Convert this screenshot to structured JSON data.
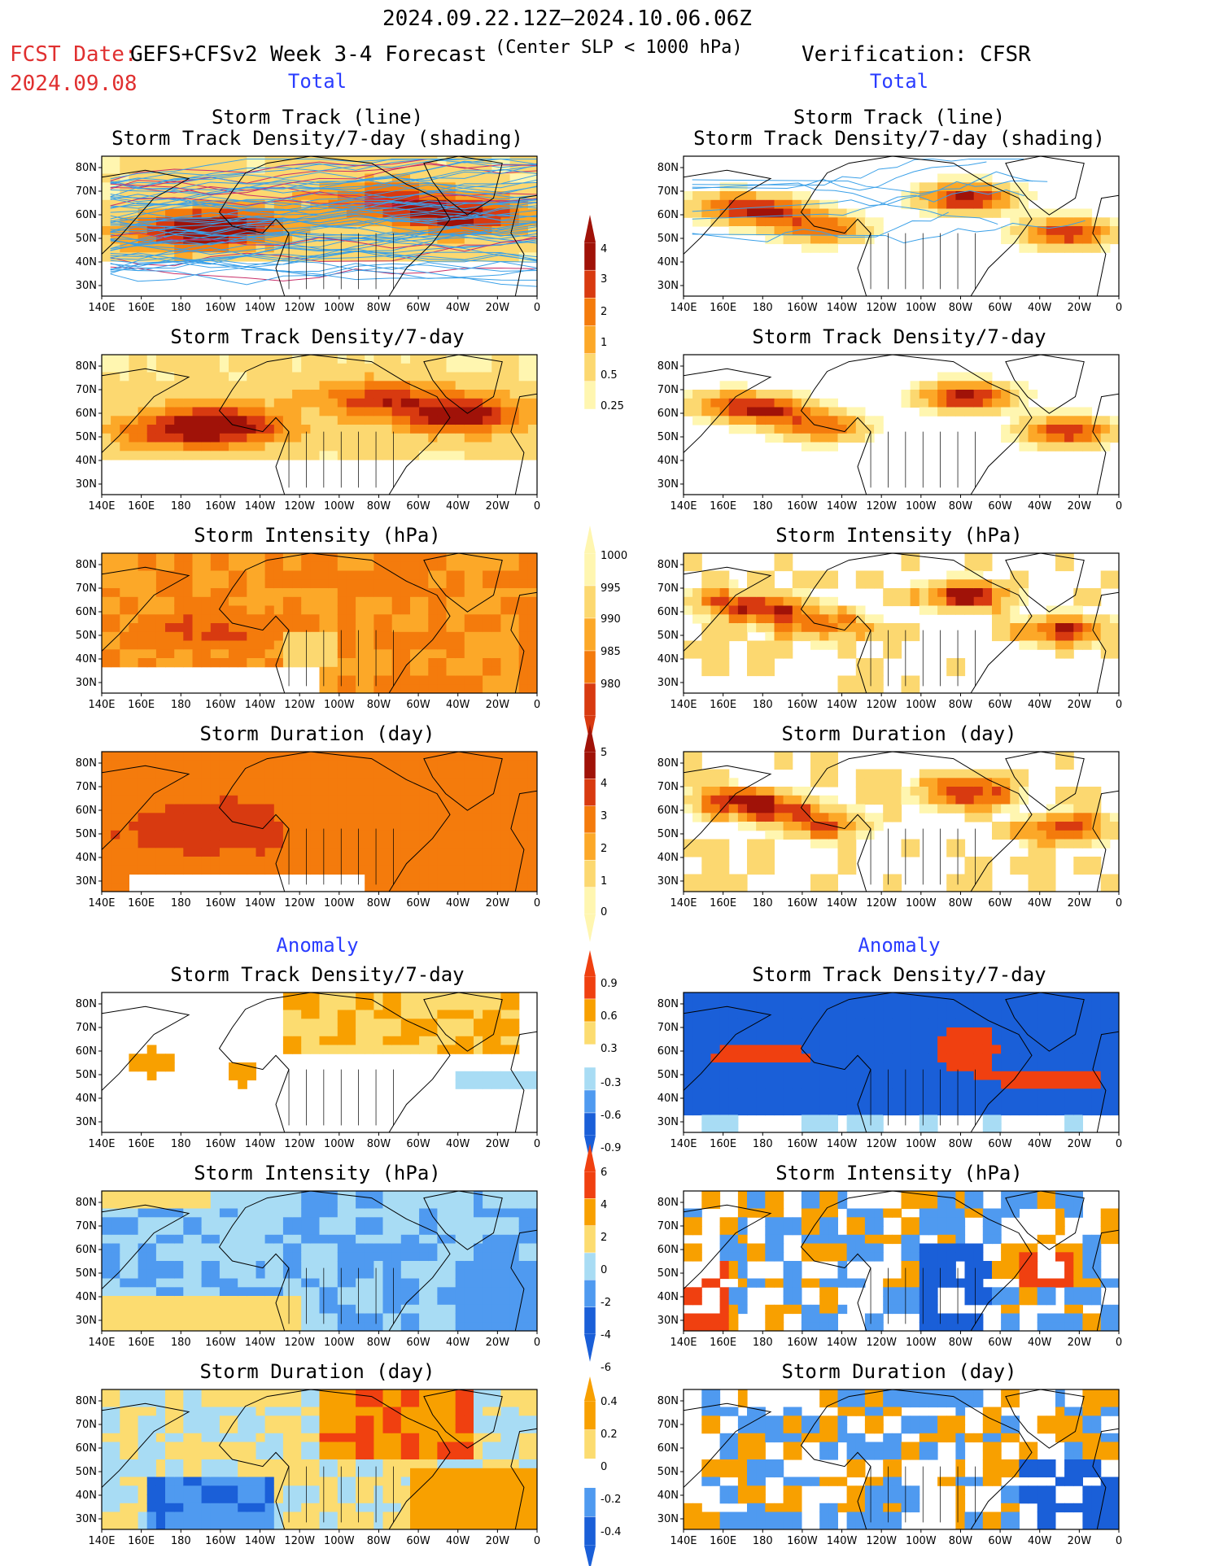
{
  "header": {
    "date_range": "2024.09.22.12Z–2024.10.06.06Z",
    "fcst_date_label": "FCST Date:",
    "fcst_date": "2024.09.08",
    "model_label": "GEFS+CFSv2 Week 3-4 Forecast",
    "criterion": "(Center SLP < 1000 hPa)",
    "verification": "Verification: CFSR"
  },
  "sections": {
    "total": "Total",
    "anomaly": "Anomaly"
  },
  "axis": {
    "lon_ticks": [
      "140E",
      "160E",
      "180",
      "160W",
      "140W",
      "120W",
      "100W",
      "80W",
      "60W",
      "40W",
      "20W",
      "0"
    ],
    "lat_ticks": [
      "80N",
      "70N",
      "60N",
      "50N",
      "40N",
      "30N"
    ]
  },
  "panels": {
    "track_line_1": "Storm Track (line)",
    "track_line_2": "Storm Track Density/7-day (shading)",
    "density": "Storm Track Density/7-day",
    "intensity": "Storm Intensity (hPa)",
    "duration": "Storm Duration (day)"
  },
  "colorbars": {
    "density": [
      "0.25",
      "0.5",
      "1",
      "2",
      "3",
      "4"
    ],
    "intensity": [
      "1000",
      "995",
      "990",
      "985",
      "980"
    ],
    "duration": [
      "0",
      "1",
      "2",
      "3",
      "4",
      "5"
    ],
    "density_anom": [
      "-0.9",
      "-0.6",
      "-0.3",
      "0.3",
      "0.6",
      "0.9"
    ],
    "intensity_anom": [
      "-6",
      "-4",
      "-2",
      "0",
      "2",
      "4",
      "6"
    ],
    "duration_anom": [
      "-0.4",
      "-0.2",
      "0",
      "0.2",
      "0.4"
    ]
  },
  "colors": {
    "seq": [
      "#fff6b0",
      "#fcd870",
      "#fca828",
      "#f47b0c",
      "#d83a10",
      "#a01208"
    ],
    "div_neg": [
      "#1a5fd8",
      "#4f9af0",
      "#a8dcf4"
    ],
    "div_pos": [
      "#fcdc70",
      "#f8a000",
      "#f04010"
    ]
  },
  "chart_data": [
    {
      "type": "heatmap",
      "title": "Storm Track (line) / Storm Track Density/7-day (shading)",
      "source": "GEFS+CFSv2",
      "xlabel": "",
      "ylabel": ""
    },
    {
      "type": "heatmap",
      "title": "Storm Track (line) / Storm Track Density/7-day (shading)",
      "source": "CFSR",
      "xlabel": "",
      "ylabel": ""
    },
    {
      "type": "heatmap",
      "title": "Storm Track Density/7-day",
      "source": "GEFS+CFSv2",
      "scale": [
        0.25,
        0.5,
        1,
        2,
        3,
        4
      ]
    },
    {
      "type": "heatmap",
      "title": "Storm Track Density/7-day",
      "source": "CFSR",
      "scale": [
        0.25,
        0.5,
        1,
        2,
        3,
        4
      ]
    },
    {
      "type": "heatmap",
      "title": "Storm Intensity (hPa)",
      "source": "GEFS+CFSv2",
      "scale": [
        1000,
        995,
        990,
        985,
        980
      ]
    },
    {
      "type": "heatmap",
      "title": "Storm Intensity (hPa)",
      "source": "CFSR",
      "scale": [
        1000,
        995,
        990,
        985,
        980
      ]
    },
    {
      "type": "heatmap",
      "title": "Storm Duration (day)",
      "source": "GEFS+CFSv2",
      "scale": [
        0,
        1,
        2,
        3,
        4,
        5
      ]
    },
    {
      "type": "heatmap",
      "title": "Storm Duration (day)",
      "source": "CFSR",
      "scale": [
        0,
        1,
        2,
        3,
        4,
        5
      ]
    },
    {
      "type": "heatmap",
      "title": "Storm Track Density/7-day (Anomaly)",
      "source": "GEFS+CFSv2",
      "scale": [
        -0.9,
        -0.6,
        -0.3,
        0.3,
        0.6,
        0.9
      ]
    },
    {
      "type": "heatmap",
      "title": "Storm Track Density/7-day (Anomaly)",
      "source": "CFSR",
      "scale": [
        -0.9,
        -0.6,
        -0.3,
        0.3,
        0.6,
        0.9
      ]
    },
    {
      "type": "heatmap",
      "title": "Storm Intensity (hPa) (Anomaly)",
      "source": "GEFS+CFSv2",
      "scale": [
        -6,
        -4,
        -2,
        0,
        2,
        4,
        6
      ]
    },
    {
      "type": "heatmap",
      "title": "Storm Intensity (hPa) (Anomaly)",
      "source": "CFSR",
      "scale": [
        -6,
        -4,
        -2,
        0,
        2,
        4,
        6
      ]
    },
    {
      "type": "heatmap",
      "title": "Storm Duration (day) (Anomaly)",
      "source": "GEFS+CFSv2",
      "scale": [
        -0.4,
        -0.2,
        0,
        0.2,
        0.4
      ]
    },
    {
      "type": "heatmap",
      "title": "Storm Duration (day) (Anomaly)",
      "source": "CFSR",
      "scale": [
        -0.4,
        -0.2,
        0,
        0.2,
        0.4
      ]
    }
  ]
}
